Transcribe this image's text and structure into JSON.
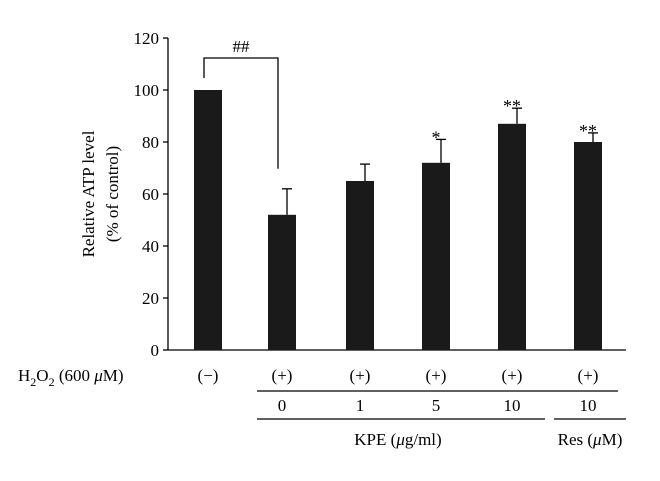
{
  "chart_data": {
    "type": "bar",
    "ylabel_line1": "Relative ATP level",
    "ylabel_line2": "(% of control)",
    "ylim": [
      0,
      120
    ],
    "yticks": [
      0,
      20,
      40,
      60,
      80,
      100,
      120
    ],
    "bar_color": "#1a1a1a",
    "categories": [
      "(−)",
      "(+)",
      "(+)",
      "(+)",
      "(+)",
      "(+)"
    ],
    "values": [
      100,
      52,
      65,
      72,
      87,
      80
    ],
    "errors": [
      0,
      10,
      6.5,
      9,
      6,
      3.5
    ],
    "significance": [
      "",
      "",
      "",
      "*",
      "**",
      "**"
    ],
    "bracket_label": "##",
    "row_h2o2": {
      "label_main": "H",
      "label_sub": "2",
      "label_mid": "O",
      "label_sub2": "2",
      "label_tail": " (600 ",
      "label_mu": "μ",
      "label_end": "M)"
    },
    "row_dose": [
      "",
      "0",
      "1",
      "5",
      "10",
      "10"
    ],
    "group_kpe": {
      "label_main": "KPE (",
      "label_mu": "μ",
      "label_end": "g/ml)"
    },
    "group_res": {
      "label_main": "Res (",
      "label_mu": "μ",
      "label_end": "M)"
    }
  }
}
